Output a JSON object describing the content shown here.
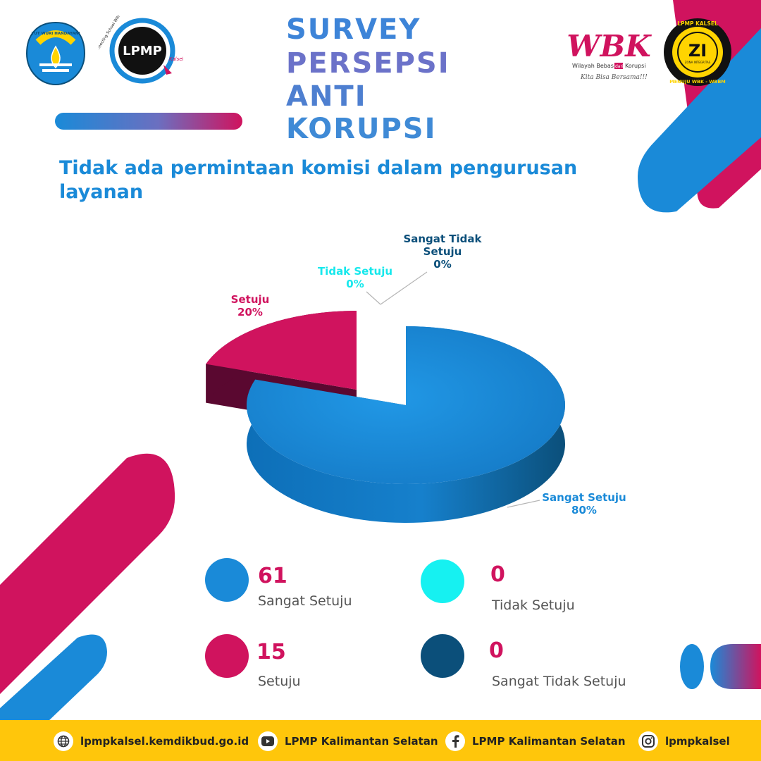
{
  "header": {
    "title_lines": [
      "SURVEY",
      "PERSEPSI",
      "ANTI",
      "KORUPSI"
    ],
    "question": "Tidak ada permintaan komisi dalam pengurusan layanan"
  },
  "logos": {
    "tutwuri": "TUT WURI HANDAYANI",
    "lpmp_main": "LPMP",
    "lpmp_sub": "Kalsel",
    "lpmp_tagline": "Connecting School With Quality System",
    "wbk_main": "WBK",
    "wbk_sub_left": "Wilayah Bebas",
    "wbk_sub_mid": "dari",
    "wbk_sub_right": "Korupsi",
    "wbk_slogan": "Kita Bisa Bersama!!!",
    "zi_top": "LPMP KALSEL",
    "zi_main": "ZI",
    "zi_sub": "ZONA INTEGRITAS",
    "zi_bottom": "MENUJU WBK - WBBM"
  },
  "chart_data": {
    "type": "pie",
    "categories": [
      "Sangat Setuju",
      "Setuju",
      "Tidak Setuju",
      "Sangat Tidak Setuju"
    ],
    "values": [
      61,
      15,
      0,
      0
    ],
    "percent_labels": [
      "80%",
      "20%",
      "0%",
      "0%"
    ],
    "colors": [
      "#1a8ad8",
      "#d0135e",
      "#16f1f1",
      "#0b4f7a"
    ],
    "style": "3d-exploded"
  },
  "legend": [
    {
      "value": "61",
      "label": "Sangat Setuju",
      "color": "#1a8ad8"
    },
    {
      "value": "0",
      "label": "Tidak Setuju",
      "color": "#16f1f1"
    },
    {
      "value": "15",
      "label": "Setuju",
      "color": "#d0135e"
    },
    {
      "value": "0",
      "label": "Sangat Tidak Setuju",
      "color": "#0b4f7a"
    }
  ],
  "footer": {
    "website": "lpmpkalsel.kemdikbud.go.id",
    "youtube": "LPMP Kalimantan Selatan",
    "facebook": "LPMP Kalimantan Selatan",
    "instagram": "lpmpkalsel"
  },
  "icons": [
    "globe-icon",
    "youtube-icon",
    "facebook-icon",
    "instagram-icon"
  ]
}
